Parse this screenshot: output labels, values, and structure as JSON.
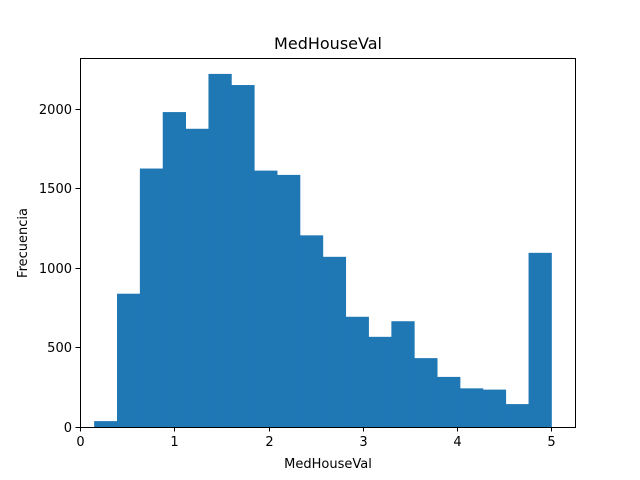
{
  "chart_data": {
    "type": "bar",
    "subtype": "histogram",
    "title": "MedHouseVal",
    "xlabel": "MedHouseVal",
    "ylabel": "Frecuencia",
    "xlim": [
      0,
      5.25
    ],
    "ylim": [
      0,
      2320
    ],
    "xticks": [
      0,
      1,
      2,
      3,
      4,
      5
    ],
    "yticks": [
      0,
      500,
      1000,
      1500,
      2000
    ],
    "bin_edges": [
      0.15,
      0.3925,
      0.635,
      0.8775,
      1.12,
      1.3625,
      1.605,
      1.8475,
      2.09,
      2.3325,
      2.575,
      2.8175,
      3.06,
      3.3025,
      3.545,
      3.7875,
      4.03,
      4.2725,
      4.515,
      4.7575,
      5.0
    ],
    "values": [
      37,
      838,
      1625,
      1980,
      1875,
      2220,
      2150,
      1612,
      1585,
      1205,
      1070,
      693,
      567,
      665,
      433,
      315,
      243,
      235,
      144,
      1095
    ],
    "bar_color": "#1f77b4",
    "grid": false,
    "legend": "none"
  }
}
